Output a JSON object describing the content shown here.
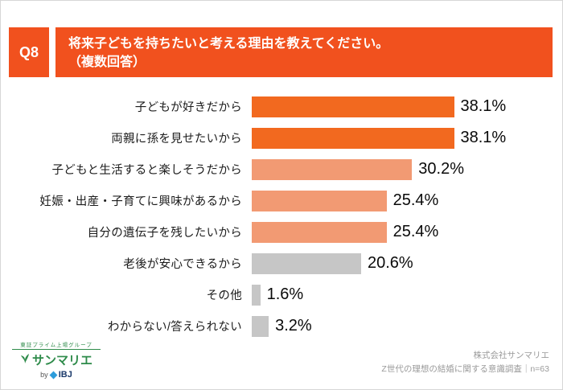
{
  "header": {
    "badge": "Q8",
    "title_line1": "将来子どもを持ちたいと考える理由を教えてください。",
    "title_line2": "（複数回答）"
  },
  "chart_data": {
    "type": "bar",
    "orientation": "horizontal",
    "title": "将来子どもを持ちたいと考える理由を教えてください。（複数回答）",
    "value_suffix": "%",
    "xlim": [
      0,
      40
    ],
    "grid": false,
    "legend": "none",
    "categories": [
      "子どもが好きだから",
      "両親に孫を見せたいから",
      "子どもと生活すると楽しそうだから",
      "妊娠・出産・子育てに興味があるから",
      "自分の遺伝子を残したいから",
      "老後が安心できるから",
      "その他",
      "わからない/答えられない"
    ],
    "values": [
      38.1,
      38.1,
      30.2,
      25.4,
      25.4,
      20.6,
      1.6,
      3.2
    ],
    "rows": [
      {
        "label": "子どもが好きだから",
        "value": 38.1,
        "display": "38.1%",
        "tone": "strong"
      },
      {
        "label": "両親に孫を見せたいから",
        "value": 38.1,
        "display": "38.1%",
        "tone": "strong"
      },
      {
        "label": "子どもと生活すると楽しそうだから",
        "value": 30.2,
        "display": "30.2%",
        "tone": "medium"
      },
      {
        "label": "妊娠・出産・子育てに興味があるから",
        "value": 25.4,
        "display": "25.4%",
        "tone": "medium"
      },
      {
        "label": "自分の遺伝子を残したいから",
        "value": 25.4,
        "display": "25.4%",
        "tone": "medium"
      },
      {
        "label": "老後が安心できるから",
        "value": 20.6,
        "display": "20.6%",
        "tone": "neutral"
      },
      {
        "label": "その他",
        "value": 1.6,
        "display": "1.6%",
        "tone": "neutral"
      },
      {
        "label": "わからない/答えられない",
        "value": 3.2,
        "display": "3.2%",
        "tone": "neutral"
      }
    ],
    "colors": {
      "strong": "#f2691f",
      "medium": "#f29a73",
      "neutral": "#c6c6c6",
      "accent_header": "#f1511e"
    }
  },
  "footer": {
    "logo_tagline": "東証プライム上場グループ",
    "logo_name": "サンマリエ",
    "logo_by": "by",
    "logo_brand": "IBJ",
    "company": "株式会社サンマリエ",
    "survey_note": "Z世代の理想の結婚に関する意識調査｜n=63"
  }
}
